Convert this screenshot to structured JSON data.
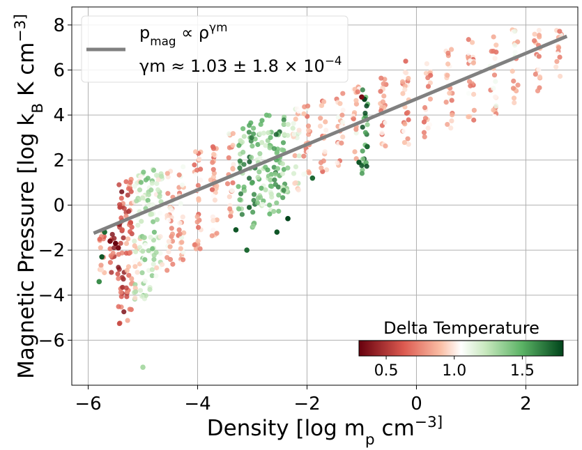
{
  "chart_data": {
    "type": "scatter",
    "xlabel": "Density [log m_p cm^-3]",
    "ylabel": "Magnetic Pressure [log k_B K cm^-3]",
    "xlim": [
      -6.3,
      2.95
    ],
    "ylim": [
      -8.0,
      8.8
    ],
    "x_ticks": [
      -6,
      -4,
      -2,
      0,
      2
    ],
    "y_ticks": [
      -6,
      -4,
      -2,
      0,
      2,
      4,
      6,
      8
    ],
    "grid": true,
    "fit_line": {
      "x": [
        -5.9,
        2.75
      ],
      "y": [
        -1.25,
        7.5
      ],
      "color": "#808080",
      "legend_line1": "p_mag ∝ ρ^γm",
      "legend_line2": "γm ≈ 1.03 ± 1.8 × 10^-4"
    },
    "legend_placement": "upper-left",
    "colorbar": {
      "title": "Delta Temperature",
      "colormap": "RdGn",
      "range": [
        0.3,
        1.8
      ],
      "ticks": [
        0.5,
        1.0,
        1.5
      ],
      "placement": "lower-right"
    },
    "columns": [
      {
        "x": -5.75,
        "ymin": -3.4,
        "ymax": -1.1,
        "tint": 0.8
      },
      {
        "x": -5.55,
        "ymin": -3.0,
        "ymax": -1.2,
        "tint": 0.6
      },
      {
        "x": -5.4,
        "ymin": -5.3,
        "ymax": 1.2,
        "tint": 0.55
      },
      {
        "x": -5.25,
        "ymin": -5.4,
        "ymax": 1.2,
        "tint": 0.7
      },
      {
        "x": -5.1,
        "ymin": -4.2,
        "ymax": 1.4,
        "tint": 1.1
      },
      {
        "x": -5.0,
        "ymin": -4.2,
        "ymax": 1.6,
        "tint": 1.25
      },
      {
        "x": -4.85,
        "ymin": -3.8,
        "ymax": 1.6,
        "tint": 1.25
      },
      {
        "x": -4.7,
        "ymin": -3.2,
        "ymax": 1.7,
        "tint": 1.1
      },
      {
        "x": -4.5,
        "ymin": -2.9,
        "ymax": 1.8,
        "tint": 0.95
      },
      {
        "x": -4.3,
        "ymin": -2.6,
        "ymax": 2.0,
        "tint": 0.9
      },
      {
        "x": -4.0,
        "ymin": -2.3,
        "ymax": 2.5,
        "tint": 0.85
      },
      {
        "x": -3.7,
        "ymin": -1.6,
        "ymax": 2.9,
        "tint": 0.85
      },
      {
        "x": -3.4,
        "ymin": -0.5,
        "ymax": 3.4,
        "tint": 0.9
      },
      {
        "x": -3.2,
        "ymin": -0.5,
        "ymax": 3.6,
        "tint": 1.45
      },
      {
        "x": -3.0,
        "ymin": -1.0,
        "ymax": 3.8,
        "tint": 1.55
      },
      {
        "x": -2.85,
        "ymin": -0.5,
        "ymax": 3.9,
        "tint": 1.3
      },
      {
        "x": -2.7,
        "ymin": -0.5,
        "ymax": 4.0,
        "tint": 1.35
      },
      {
        "x": -2.55,
        "ymin": -0.3,
        "ymax": 4.0,
        "tint": 1.5
      },
      {
        "x": -2.4,
        "ymin": 0.1,
        "ymax": 4.1,
        "tint": 1.4
      },
      {
        "x": -2.2,
        "ymin": 0.5,
        "ymax": 4.3,
        "tint": 1.05
      },
      {
        "x": -2.0,
        "ymin": 1.0,
        "ymax": 4.5,
        "tint": 0.9
      },
      {
        "x": -1.7,
        "ymin": 1.4,
        "ymax": 4.8,
        "tint": 0.85
      },
      {
        "x": -1.4,
        "ymin": 1.7,
        "ymax": 5.2,
        "tint": 0.9
      },
      {
        "x": -1.1,
        "ymin": 2.0,
        "ymax": 5.6,
        "tint": 0.9
      },
      {
        "x": -0.95,
        "ymin": 1.4,
        "ymax": 5.2,
        "tint": 1.6
      },
      {
        "x": -0.6,
        "ymin": 2.3,
        "ymax": 6.0,
        "tint": 0.85
      },
      {
        "x": -0.2,
        "ymin": 2.6,
        "ymax": 6.4,
        "tint": 0.85
      },
      {
        "x": 0.2,
        "ymin": 3.0,
        "ymax": 6.8,
        "tint": 0.85
      },
      {
        "x": 0.6,
        "ymin": 3.3,
        "ymax": 7.1,
        "tint": 0.85
      },
      {
        "x": 1.0,
        "ymin": 3.6,
        "ymax": 7.4,
        "tint": 0.85
      },
      {
        "x": 1.4,
        "ymin": 3.9,
        "ymax": 7.6,
        "tint": 0.9
      },
      {
        "x": 1.8,
        "ymin": 4.3,
        "ymax": 7.8,
        "tint": 0.9
      },
      {
        "x": 2.2,
        "ymin": 4.8,
        "ymax": 7.9,
        "tint": 0.9
      },
      {
        "x": 2.6,
        "ymin": 5.5,
        "ymax": 7.9,
        "tint": 0.9
      }
    ],
    "highlight_points": [
      {
        "x": -5.5,
        "y": -1.7,
        "t": 0.3
      },
      {
        "x": -5.45,
        "y": -1.9,
        "t": 0.35
      },
      {
        "x": -5.6,
        "y": -1.6,
        "t": 0.35
      },
      {
        "x": -5.75,
        "y": -2.3,
        "t": 1.75
      },
      {
        "x": -5.7,
        "y": -1.2,
        "t": 1.7
      },
      {
        "x": -5.8,
        "y": -3.4,
        "t": 1.6
      },
      {
        "x": -5.0,
        "y": -7.2,
        "t": 1.3
      },
      {
        "x": -3.3,
        "y": -1.1,
        "t": 1.75
      },
      {
        "x": -3.1,
        "y": -2.0,
        "t": 1.7
      },
      {
        "x": -2.55,
        "y": -1.2,
        "t": 1.75
      },
      {
        "x": -2.35,
        "y": -0.6,
        "t": 1.8
      },
      {
        "x": -1.9,
        "y": 1.2,
        "t": 1.7
      },
      {
        "x": -0.95,
        "y": 4.7,
        "t": 1.8
      },
      {
        "x": -1.0,
        "y": 4.8,
        "t": 0.35
      },
      {
        "x": -0.9,
        "y": 2.6,
        "t": 1.7
      },
      {
        "x": -1.05,
        "y": 1.9,
        "t": 1.75
      }
    ]
  }
}
